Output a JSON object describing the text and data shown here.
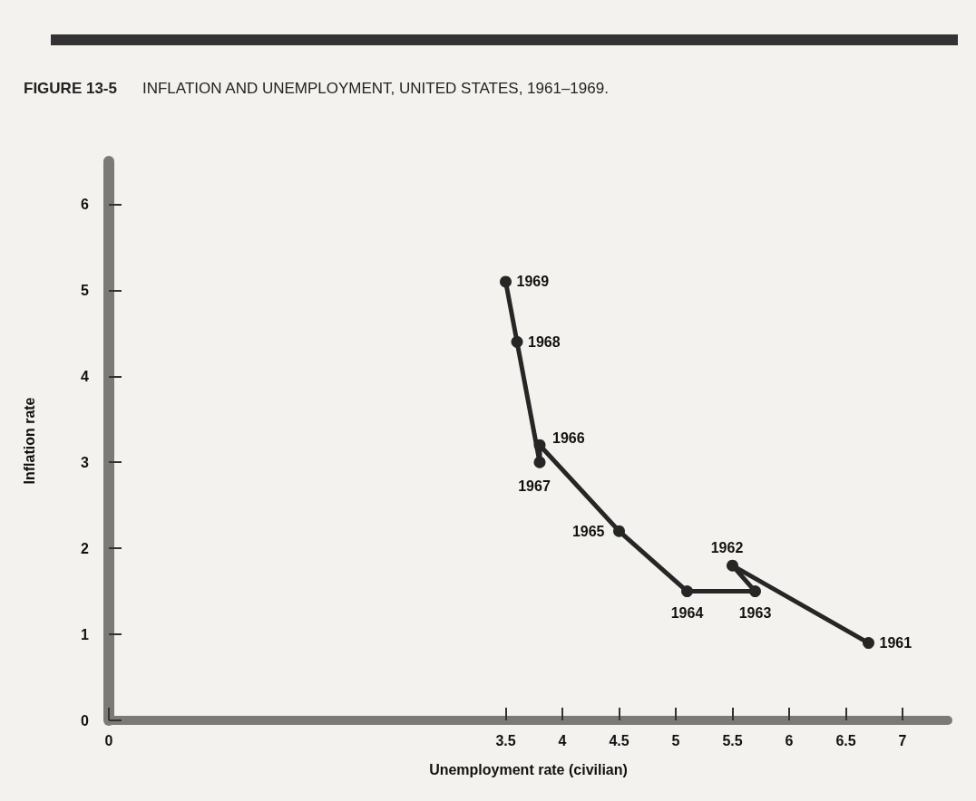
{
  "chart_data": {
    "type": "line",
    "title": "FIGURE 13-5",
    "subtitle": "INFLATION AND UNEMPLOYMENT, UNITED STATES, 1961–1969.",
    "xlabel": "Unemployment rate (civilian)",
    "ylabel": "Inflation rate",
    "x": [
      6.7,
      5.5,
      5.7,
      5.1,
      4.5,
      3.8,
      3.8,
      3.6,
      3.5
    ],
    "series": [
      {
        "color": "#262626",
        "values": [
          0.9,
          1.8,
          1.5,
          1.5,
          2.2,
          3.2,
          3.0,
          4.4,
          5.1
        ]
      }
    ],
    "annotations": [
      {
        "text": "1961",
        "x": 6.7,
        "y": 0.9
      },
      {
        "text": "1962",
        "x": 5.5,
        "y": 1.8
      },
      {
        "text": "1963",
        "x": 5.7,
        "y": 1.5
      },
      {
        "text": "1964",
        "x": 5.1,
        "y": 1.5
      },
      {
        "text": "1965",
        "x": 4.5,
        "y": 2.2
      },
      {
        "text": "1966",
        "x": 3.8,
        "y": 3.2
      },
      {
        "text": "1967",
        "x": 3.8,
        "y": 3.0
      },
      {
        "text": "1968",
        "x": 3.6,
        "y": 4.4
      },
      {
        "text": "1969",
        "x": 3.5,
        "y": 5.1
      }
    ],
    "xlim": [
      0,
      7.4
    ],
    "xticks": [
      0,
      3.5,
      4.0,
      4.5,
      5.0,
      5.5,
      6.0,
      6.5,
      7.0
    ],
    "ylim": [
      0,
      6.5
    ],
    "yticks": [
      0,
      1,
      2,
      3,
      4,
      5,
      6
    ],
    "grid": false,
    "marker": "circle",
    "line_style": "solid"
  }
}
